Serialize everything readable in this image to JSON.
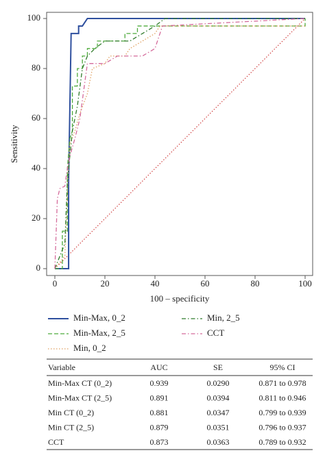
{
  "chart_data": {
    "type": "line",
    "xlabel": "100 – specificity",
    "ylabel": "Sensitivity",
    "xlim": [
      0,
      100
    ],
    "ylim": [
      0,
      100
    ],
    "xticks": [
      0,
      20,
      40,
      60,
      80,
      100
    ],
    "yticks": [
      0,
      20,
      40,
      60,
      80,
      100
    ],
    "series": [
      {
        "name": "Min-Max, 0_2",
        "color": "#2e4f9e",
        "dash": "solid",
        "x": [
          0,
          5.5,
          5.5,
          6.5,
          9.5,
          9.5,
          11,
          13,
          100
        ],
        "values": [
          0,
          0,
          35,
          94,
          94,
          97,
          97,
          100,
          100
        ]
      },
      {
        "name": "Min-Max, 2_5",
        "color": "#4caa3a",
        "dash": "dashed",
        "x": [
          0,
          3,
          3,
          5,
          5,
          6,
          7,
          7,
          9,
          9,
          11,
          11,
          13,
          13,
          17,
          17,
          28,
          28,
          33,
          33,
          45,
          100,
          100
        ],
        "values": [
          0,
          0,
          15,
          15,
          40,
          52,
          55,
          73,
          73,
          80,
          80,
          85,
          85,
          88,
          88,
          91,
          91,
          94,
          94,
          97,
          97,
          97,
          100
        ]
      },
      {
        "name": "Min, 0_2",
        "color": "#e0a060",
        "dash": "dotted",
        "x": [
          0,
          4,
          5,
          6,
          8,
          10,
          13,
          15,
          20,
          22,
          28,
          30,
          35,
          40,
          42,
          100
        ],
        "values": [
          0,
          5,
          30,
          50,
          55,
          62,
          70,
          80,
          82,
          85,
          85,
          88,
          91,
          94,
          97,
          97
        ]
      },
      {
        "name": "Min, 2_5",
        "color": "#2f7a2a",
        "dash": "dashdot",
        "x": [
          0,
          4,
          5,
          7,
          9,
          11,
          13,
          16,
          20,
          30,
          35,
          40,
          44,
          100
        ],
        "values": [
          0,
          10,
          35,
          55,
          65,
          80,
          85,
          88,
          91,
          91,
          94,
          97,
          100,
          100
        ]
      },
      {
        "name": "CCT",
        "color": "#d46a9a",
        "dash": "dashdot",
        "x": [
          0,
          1,
          2,
          4,
          5,
          6,
          8,
          10,
          13,
          16,
          20,
          25,
          35,
          40,
          42,
          43,
          100
        ],
        "values": [
          0,
          28,
          32,
          33,
          40,
          45,
          52,
          60,
          82,
          82,
          82,
          85,
          85,
          88,
          94,
          97,
          100
        ]
      }
    ]
  },
  "table": {
    "header": [
      "Variable",
      "AUC",
      "SE",
      "95% CI"
    ],
    "rows": [
      [
        "Min-Max CT (0_2)",
        "0.939",
        "0.0290",
        "0.871 to 0.978"
      ],
      [
        "Min-Max CT (2_5)",
        "0.891",
        "0.0394",
        "0.811 to 0.946"
      ],
      [
        "Min CT (0_2)",
        "0.881",
        "0.0347",
        "0.799 to 0.939"
      ],
      [
        "Min CT (2_5)",
        "0.879",
        "0.0351",
        "0.796 to 0.937"
      ],
      [
        "CCT",
        "0.873",
        "0.0363",
        "0.789 to 0.932"
      ]
    ]
  }
}
